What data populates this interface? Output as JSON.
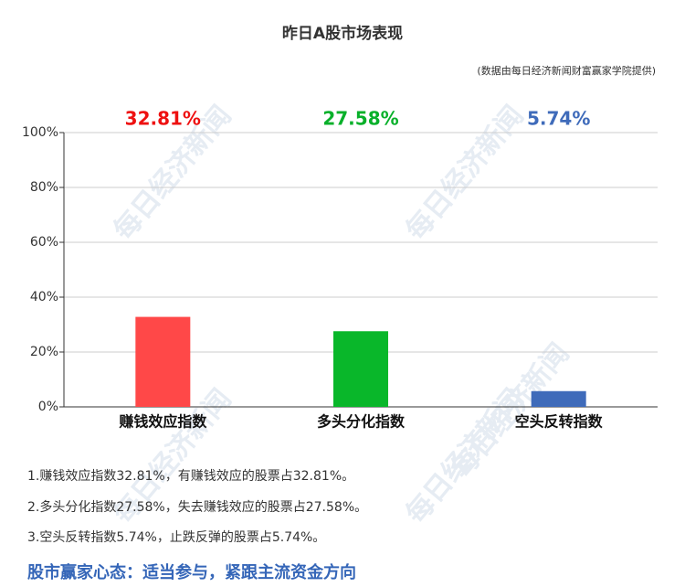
{
  "chart_data": {
    "type": "bar",
    "title": "昨日A股市场表现",
    "subtitle": "(数据由每日经济新闻财富赢家学院提供)",
    "categories": [
      "赚钱效应指数",
      "多头分化指数",
      "空头反转指数"
    ],
    "values": [
      32.81,
      27.58,
      5.74
    ],
    "value_labels": [
      "32.81%",
      "27.58%",
      "5.74%"
    ],
    "colors": [
      "#ff4848",
      "#09b72a",
      "#3f6bba"
    ],
    "label_colors": [
      "#ee1111",
      "#08b02a",
      "#3f6bba"
    ],
    "ylim": [
      0,
      100
    ],
    "yticks": [
      {
        "value": 0,
        "label": "0%"
      },
      {
        "value": 20,
        "label": "20%"
      },
      {
        "value": 40,
        "label": "40%"
      },
      {
        "value": 60,
        "label": "60%"
      },
      {
        "value": 80,
        "label": "80%"
      },
      {
        "value": 100,
        "label": "100%"
      }
    ],
    "grid": true
  },
  "notes": [
    "1.赚钱效应指数32.81%，有赚钱效应的股票占32.81%。",
    "2.多头分化指数27.58%，失去赚钱效应的股票占27.58%。",
    "3.空头反转指数5.74%，止跌反弹的股票占5.74%。"
  ],
  "headline": "股市赢家心态：适当参与，紧跟主流资金方向",
  "watermark": "每日经济新闻"
}
